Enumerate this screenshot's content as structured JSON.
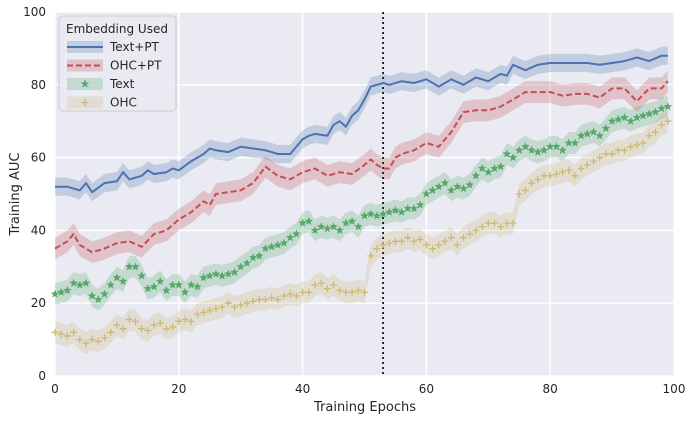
{
  "chart_data": {
    "type": "line",
    "xlabel": "Training Epochs",
    "ylabel": "Training AUC",
    "xlim": [
      0,
      100
    ],
    "ylim": [
      0,
      100
    ],
    "xticks": [
      0,
      20,
      40,
      60,
      80,
      100
    ],
    "yticks": [
      0,
      20,
      40,
      60,
      80,
      100
    ],
    "grid": true,
    "vline_x": 53,
    "legend": {
      "title": "Embedding Used",
      "placement": "top-left"
    },
    "series": [
      {
        "name": "Text+PT",
        "color": "#4C72B0",
        "linestyle": "solid",
        "marker": "none",
        "band": 2.5,
        "x": [
          0,
          2,
          4,
          5,
          6,
          8,
          10,
          11,
          12,
          14,
          15,
          16,
          18,
          19,
          20,
          22,
          24,
          25,
          26,
          28,
          30,
          32,
          34,
          35,
          36,
          38,
          40,
          41,
          42,
          44,
          45,
          46,
          47,
          48,
          49,
          50,
          51,
          52,
          53,
          54,
          56,
          58,
          60,
          62,
          64,
          66,
          68,
          70,
          72,
          73,
          74,
          76,
          78,
          80,
          84,
          86,
          88,
          90,
          92,
          94,
          96,
          98,
          99
        ],
        "values": [
          52,
          52,
          51,
          53,
          50.5,
          53,
          53.5,
          56,
          54,
          55,
          56.5,
          55.5,
          56,
          57,
          56.5,
          59,
          61,
          62.5,
          62,
          61.5,
          63,
          62.5,
          62,
          61.5,
          61,
          61,
          65,
          66,
          66.5,
          66,
          69,
          70,
          68.5,
          71.5,
          73,
          76,
          79.5,
          80,
          80.5,
          80,
          81,
          80.5,
          81.5,
          79.5,
          81.5,
          80,
          82,
          81,
          83,
          82.5,
          85.5,
          84,
          85.5,
          86,
          86,
          86,
          85.5,
          86,
          86.5,
          87.5,
          86.5,
          88,
          88
        ]
      },
      {
        "name": "OHC+PT",
        "color": "#C44E52",
        "linestyle": "dashed",
        "marker": "none",
        "band": 3,
        "x": [
          0,
          2,
          3,
          4,
          6,
          8,
          10,
          12,
          14,
          16,
          18,
          20,
          22,
          24,
          25,
          26,
          28,
          30,
          32,
          34,
          36,
          38,
          40,
          42,
          44,
          46,
          48,
          50,
          51,
          52,
          53,
          54,
          55,
          56,
          58,
          60,
          62,
          64,
          66,
          68,
          70,
          72,
          74,
          76,
          78,
          80,
          82,
          84,
          86,
          88,
          90,
          92,
          94,
          96,
          98,
          99
        ],
        "values": [
          35,
          37,
          39,
          36,
          34,
          35,
          36.5,
          37,
          35.5,
          39,
          40,
          43,
          45,
          48,
          47,
          50,
          50.5,
          51,
          53,
          57.5,
          55,
          54,
          56,
          57,
          55,
          56,
          55.5,
          58,
          59.5,
          58,
          57,
          57,
          60,
          61,
          62,
          64,
          63,
          67,
          72.5,
          73,
          73,
          74,
          76,
          78,
          78,
          78,
          77,
          77.5,
          77.5,
          76.5,
          79,
          79,
          75.5,
          79,
          79,
          81
        ]
      },
      {
        "name": "Text",
        "color": "#55A868",
        "linestyle": "none",
        "marker": "star",
        "band": 3,
        "x": [
          0,
          1,
          2,
          3,
          4,
          5,
          6,
          7,
          8,
          9,
          10,
          11,
          12,
          13,
          14,
          15,
          16,
          17,
          18,
          19,
          20,
          21,
          22,
          23,
          24,
          25,
          26,
          27,
          28,
          29,
          30,
          31,
          32,
          33,
          34,
          35,
          36,
          37,
          38,
          39,
          40,
          41,
          42,
          43,
          44,
          45,
          46,
          47,
          48,
          49,
          50,
          51,
          52,
          53,
          54,
          55,
          56,
          57,
          58,
          59,
          60,
          61,
          62,
          63,
          64,
          65,
          66,
          67,
          68,
          69,
          70,
          71,
          72,
          73,
          74,
          75,
          76,
          77,
          78,
          79,
          80,
          81,
          82,
          83,
          84,
          85,
          86,
          87,
          88,
          89,
          90,
          91,
          92,
          93,
          94,
          95,
          96,
          97,
          98,
          99
        ],
        "values": [
          22.5,
          23,
          23.5,
          25.5,
          25,
          25.5,
          22,
          21,
          22.5,
          25,
          27,
          26,
          30,
          30,
          27.5,
          24,
          24.5,
          26,
          23.5,
          25,
          25,
          23,
          25,
          24.5,
          27,
          27.5,
          28,
          27.5,
          28,
          28.5,
          30,
          31,
          32.5,
          33,
          35,
          35.5,
          36,
          36.5,
          38,
          39,
          42,
          42.5,
          40,
          41,
          40.5,
          41,
          40,
          42,
          42.5,
          41,
          44,
          44.5,
          44,
          44.5,
          45,
          45.5,
          45,
          46,
          46,
          47,
          50,
          51,
          52,
          53,
          51,
          52,
          51.5,
          52.5,
          55,
          57,
          56,
          57,
          57.5,
          61,
          60,
          62,
          63,
          62,
          61.5,
          62,
          63,
          63,
          62,
          64,
          64,
          66,
          66.5,
          67,
          66,
          68,
          70,
          70.5,
          71,
          70,
          71,
          71.5,
          72,
          72.5,
          73.5,
          74
        ]
      },
      {
        "name": "OHC",
        "color": "#CCB974",
        "linestyle": "none",
        "marker": "plus",
        "band": 3,
        "x": [
          0,
          1,
          2,
          3,
          4,
          5,
          6,
          7,
          8,
          9,
          10,
          11,
          12,
          13,
          14,
          15,
          16,
          17,
          18,
          19,
          20,
          21,
          22,
          23,
          24,
          25,
          26,
          27,
          28,
          29,
          30,
          31,
          32,
          33,
          34,
          35,
          36,
          37,
          38,
          39,
          40,
          41,
          42,
          43,
          44,
          45,
          46,
          47,
          48,
          49,
          50,
          51,
          52,
          53,
          54,
          55,
          56,
          57,
          58,
          59,
          60,
          61,
          62,
          63,
          64,
          65,
          66,
          67,
          68,
          69,
          70,
          71,
          72,
          73,
          74,
          75,
          76,
          77,
          78,
          79,
          80,
          81,
          82,
          83,
          84,
          85,
          86,
          87,
          88,
          89,
          90,
          91,
          92,
          93,
          94,
          95,
          96,
          97,
          98,
          99
        ],
        "values": [
          12,
          11.5,
          11,
          12,
          10,
          9,
          10,
          9.5,
          10.5,
          12,
          14,
          13,
          15.5,
          15,
          13,
          12.5,
          14,
          14.5,
          13,
          13.5,
          15,
          15.5,
          15,
          17,
          17.5,
          18,
          18.5,
          19,
          20,
          19,
          19.5,
          20,
          20.5,
          21,
          21,
          21.5,
          21,
          22,
          22.5,
          22,
          23,
          23,
          25,
          25.5,
          24,
          25,
          23.5,
          23,
          23,
          23.5,
          23,
          33,
          35,
          36,
          36.5,
          37,
          37,
          38,
          37,
          37.5,
          36,
          35,
          36,
          37,
          38,
          36,
          38,
          39,
          40,
          41,
          42,
          42,
          41,
          42,
          42,
          50,
          51,
          53,
          54,
          55,
          55,
          55.5,
          56,
          56.5,
          55,
          57,
          58,
          59,
          60,
          61,
          61,
          62,
          62,
          63,
          63.5,
          64,
          66,
          67,
          69,
          70
        ]
      }
    ]
  }
}
